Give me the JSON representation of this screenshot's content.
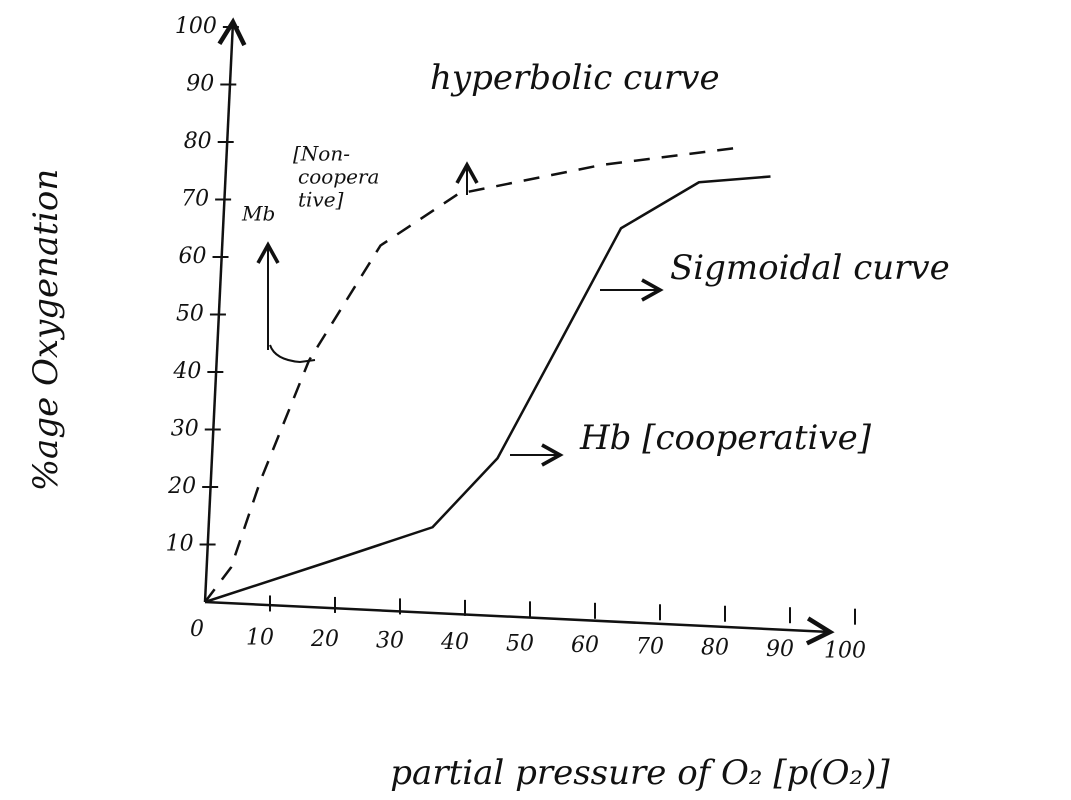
{
  "chart_data": {
    "type": "line",
    "y_label": "%age Oxygenation",
    "x_label": "partial pressure of O₂ [p(O₂)]",
    "xlim": [
      0,
      100
    ],
    "ylim": [
      0,
      100
    ],
    "xticks": [
      0,
      10,
      20,
      30,
      40,
      50,
      60,
      70,
      80,
      90,
      100
    ],
    "yticks": [
      10,
      20,
      30,
      40,
      50,
      60,
      70,
      80,
      90,
      100
    ],
    "series": [
      {
        "name": "Mb",
        "color": "#111111",
        "dashed": true,
        "x": [
          0,
          4,
          8.5,
          16,
          27,
          39,
          61,
          82
        ],
        "values": [
          0,
          6,
          21,
          42,
          62,
          71,
          76,
          79
        ]
      },
      {
        "name": "Hb [cooperative]",
        "color": "#111111",
        "dashed": false,
        "x": [
          0,
          19,
          35,
          45,
          55,
          64,
          76,
          87
        ],
        "values": [
          0,
          7,
          13,
          25,
          46,
          65,
          73,
          74
        ]
      }
    ],
    "annotations": [
      "hyperbolic curve",
      "[Non-",
      "coopera",
      "tive]",
      "Sigmoidal curve"
    ]
  }
}
